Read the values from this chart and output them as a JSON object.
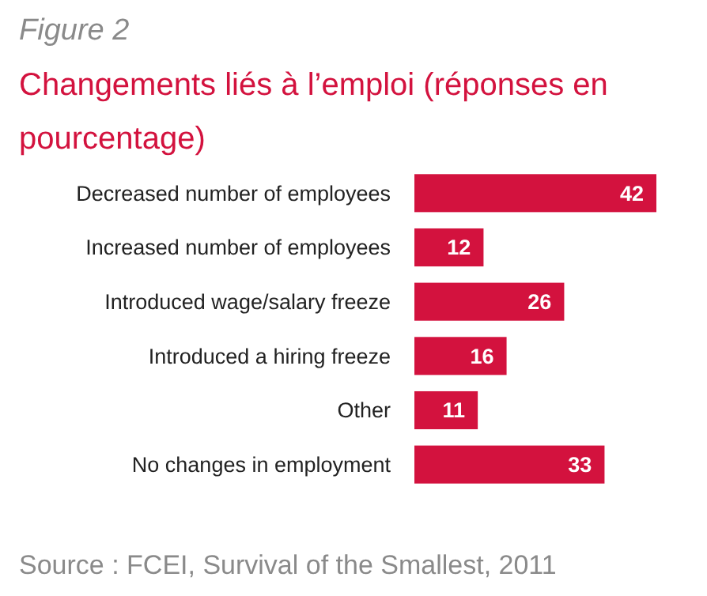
{
  "chart_data": {
    "type": "bar",
    "orientation": "horizontal",
    "subtitle": "Figure 2",
    "title": "Changements liés à l’emploi (réponses en pourcentage)",
    "categories": [
      "Decreased number of employees",
      "Increased number of employees",
      "Introduced wage/salary freeze",
      "Introduced a hiring freeze",
      "Other",
      "No changes in employment"
    ],
    "values": [
      42,
      12,
      26,
      16,
      11,
      33
    ],
    "color": "#d3123e",
    "data_labels": true,
    "annotations": [
      "Source : FCEI, Survival of the Smallest, 2011"
    ]
  }
}
